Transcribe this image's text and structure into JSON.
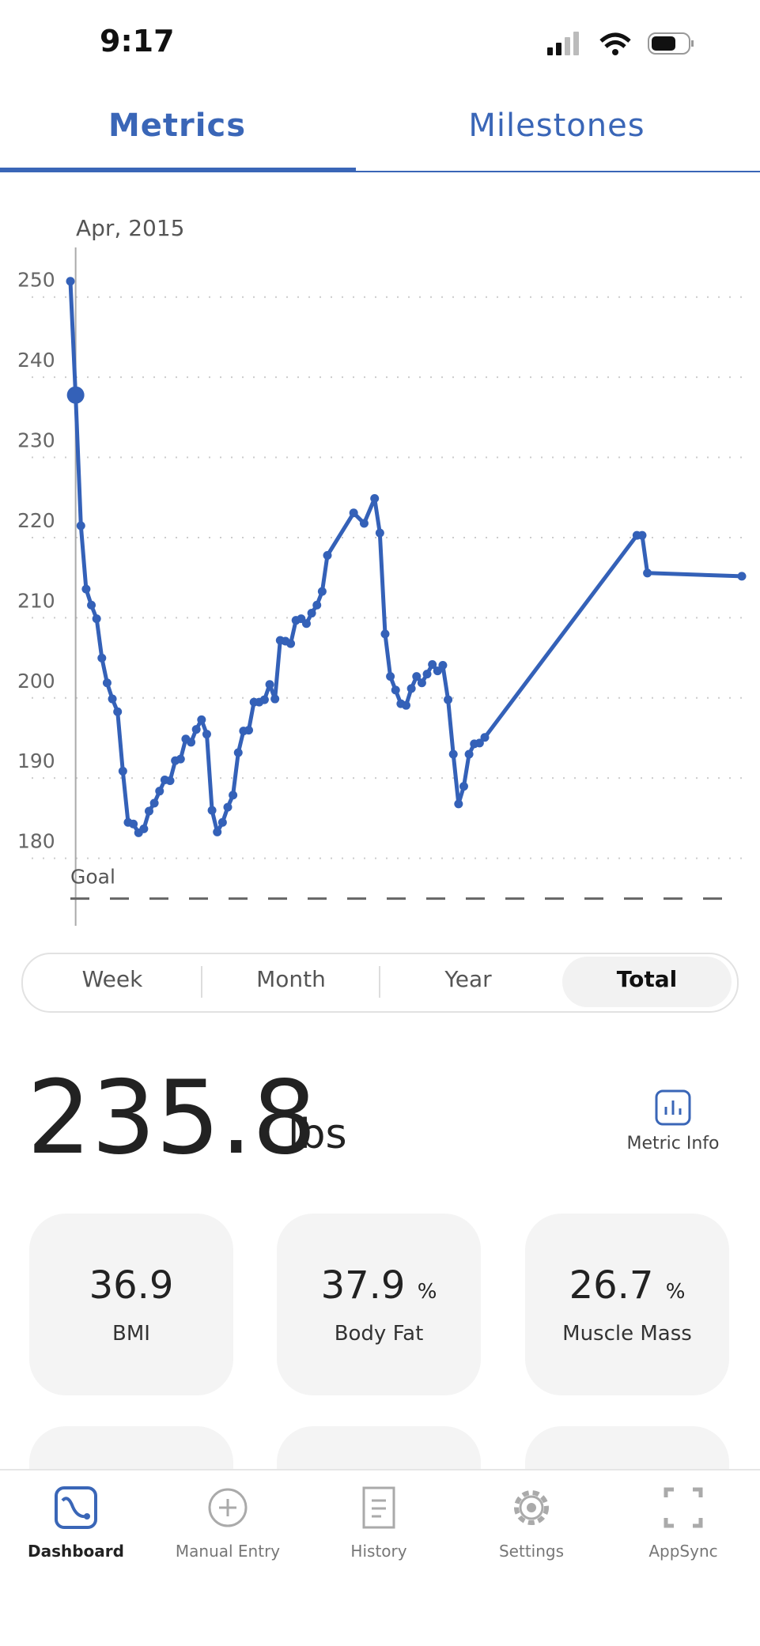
{
  "status_bar": {
    "time": "9:17"
  },
  "tabs": [
    "Metrics",
    "Milestones"
  ],
  "chart_data": {
    "type": "line",
    "date_label": "Apr, 2015",
    "color": "#3461b8",
    "x": [
      0,
      5,
      10,
      15,
      20,
      25,
      30,
      35,
      40,
      45,
      50,
      55,
      60,
      65,
      70,
      75,
      80,
      85,
      90,
      95,
      100,
      105,
      110,
      115,
      120,
      125,
      130,
      135,
      140,
      145,
      150,
      155,
      160,
      165,
      170,
      175,
      180,
      185,
      190,
      195,
      200,
      205,
      210,
      215,
      220,
      225,
      230,
      235,
      240,
      245,
      270,
      280,
      290,
      295,
      300,
      305,
      310,
      315,
      320,
      325,
      330,
      335,
      340,
      345,
      350,
      355,
      360,
      365,
      370,
      375,
      380,
      385,
      390,
      395,
      540,
      545,
      550,
      640
    ],
    "values": [
      250,
      235.8,
      219.5,
      211.6,
      209.6,
      207.9,
      203.0,
      199.9,
      197.9,
      196.3,
      188.9,
      182.5,
      182.3,
      181.2,
      181.7,
      183.9,
      184.9,
      186.4,
      187.8,
      187.7,
      190.2,
      190.4,
      192.9,
      192.5,
      194.1,
      195.3,
      193.5,
      184.0,
      181.3,
      182.5,
      184.4,
      185.9,
      191.2,
      193.9,
      194.0,
      197.5,
      197.5,
      197.8,
      199.7,
      197.9,
      205.2,
      205.1,
      204.8,
      207.7,
      207.9,
      207.3,
      208.6,
      209.6,
      211.3,
      215.8,
      221.1,
      219.8,
      222.9,
      218.6,
      206.0,
      200.7,
      199.0,
      197.3,
      197.1,
      199.2,
      200.7,
      199.9,
      201.0,
      202.2,
      201.4,
      202.1,
      197.8,
      191.0,
      184.8,
      187.0,
      191.0,
      192.3,
      192.4,
      193.1,
      218.3,
      218.3,
      213.6,
      213.2
    ],
    "highlight_index": 1,
    "xlim": [
      0,
      640
    ],
    "ylim": [
      170,
      255
    ],
    "yticks": [
      180,
      190,
      200,
      210,
      220,
      230,
      240,
      250
    ],
    "grid": true,
    "goal": {
      "label": "Goal",
      "value": 173
    }
  },
  "range_options": [
    "Week",
    "Month",
    "Year",
    "Total"
  ],
  "current": {
    "value": 235.8,
    "unit": "lbs",
    "info": "Metric Info"
  },
  "cards": [
    {
      "value": 36.9,
      "label": "BMI"
    },
    {
      "value": 37.9,
      "unit": "%",
      "label": "Body Fat"
    },
    {
      "value": 26.7,
      "unit": "%",
      "label": "Muscle Mass"
    }
  ],
  "nav": [
    "Dashboard",
    "Manual Entry",
    "History",
    "Settings",
    "AppSync"
  ]
}
